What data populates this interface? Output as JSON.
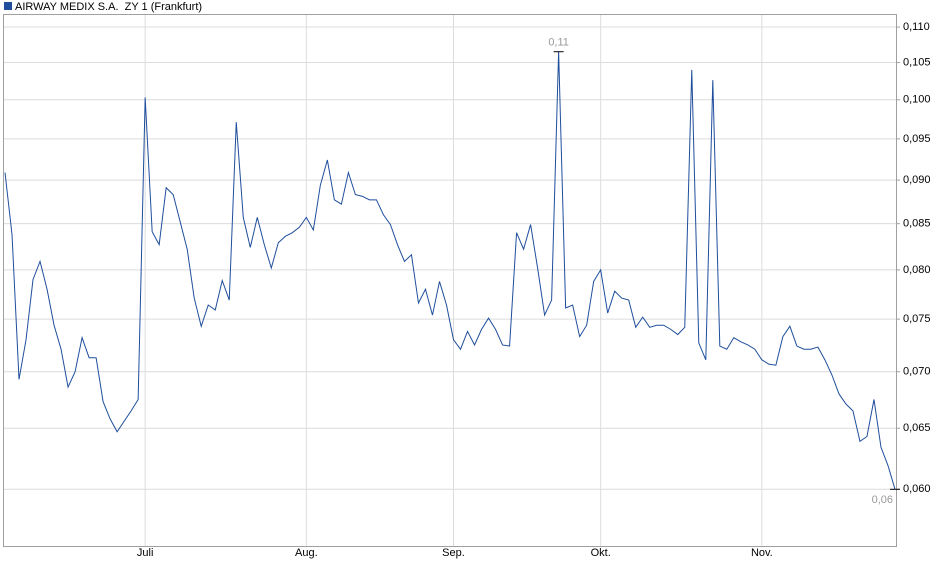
{
  "chart_data": {
    "type": "line",
    "log_scale": true,
    "grid": true,
    "legend": "top-left",
    "categories": [
      null,
      null,
      null,
      null,
      null,
      null,
      null,
      null,
      null,
      null,
      null,
      null,
      null,
      null,
      null,
      null,
      null,
      null,
      null,
      null,
      "Juli",
      null,
      null,
      null,
      null,
      null,
      null,
      null,
      null,
      null,
      null,
      null,
      null,
      null,
      null,
      null,
      null,
      null,
      null,
      null,
      null,
      null,
      null,
      "Aug.",
      null,
      null,
      null,
      null,
      null,
      null,
      null,
      null,
      null,
      null,
      null,
      null,
      null,
      null,
      null,
      null,
      null,
      null,
      null,
      null,
      "Sep.",
      null,
      null,
      null,
      null,
      null,
      null,
      null,
      null,
      null,
      null,
      null,
      null,
      null,
      null,
      null,
      null,
      null,
      null,
      null,
      null,
      "Okt.",
      null,
      null,
      null,
      null,
      null,
      null,
      null,
      null,
      null,
      null,
      null,
      null,
      null,
      null,
      null,
      null,
      null,
      null,
      null,
      null,
      null,
      null,
      "Nov.",
      null,
      null,
      null,
      null,
      null,
      null,
      null,
      null,
      null,
      null,
      null,
      null,
      null,
      null,
      null,
      null,
      null,
      null,
      null
    ],
    "series": [
      {
        "name": "AIRWAY MEDIX S.A.  ZY 1 (Frankfurt)",
        "color": "#1f4e9c",
        "values": [
          0.0909,
          0.0838,
          0.0693,
          0.073,
          0.079,
          0.0809,
          0.078,
          0.0744,
          0.0721,
          0.0686,
          0.07,
          0.0732,
          0.0713,
          0.0713,
          0.0673,
          0.0658,
          0.0647,
          0.0656,
          0.0665,
          0.0675,
          0.1003,
          0.0841,
          0.0827,
          0.0891,
          0.0883,
          0.0852,
          0.0822,
          0.0771,
          0.0743,
          0.0764,
          0.0759,
          0.0789,
          0.0769,
          0.0971,
          0.0857,
          0.0824,
          0.0857,
          0.0827,
          0.0802,
          0.0829,
          0.0836,
          0.084,
          0.0846,
          0.0857,
          0.0843,
          0.0894,
          0.0924,
          0.0877,
          0.0872,
          0.0909,
          0.0883,
          0.0881,
          0.0877,
          0.0877,
          0.086,
          0.0849,
          0.0827,
          0.0809,
          0.0816,
          0.0766,
          0.078,
          0.0754,
          0.0788,
          0.0764,
          0.073,
          0.0721,
          0.0738,
          0.0725,
          0.074,
          0.0751,
          0.074,
          0.0725,
          0.0724,
          0.084,
          0.0822,
          0.0849,
          0.0802,
          0.0754,
          0.0769,
          0.1065,
          0.0761,
          0.0764,
          0.0733,
          0.0744,
          0.0788,
          0.08,
          0.0756,
          0.0778,
          0.0771,
          0.0769,
          0.0742,
          0.0752,
          0.0742,
          0.0744,
          0.0744,
          0.074,
          0.0735,
          0.0742,
          0.104,
          0.0727,
          0.0711,
          0.1026,
          0.0724,
          0.0721,
          0.0732,
          0.0728,
          0.0725,
          0.0721,
          0.0711,
          0.0707,
          0.0706,
          0.0733,
          0.0743,
          0.0724,
          0.0721,
          0.0721,
          0.0723,
          0.0711,
          0.0697,
          0.068,
          0.0671,
          0.0665,
          0.0639,
          0.0643,
          0.0675,
          0.0634,
          0.0619,
          0.06
        ],
        "value_labels": [
          null,
          null,
          null,
          null,
          null,
          null,
          null,
          null,
          null,
          null,
          null,
          null,
          null,
          null,
          null,
          null,
          null,
          null,
          null,
          null,
          null,
          null,
          null,
          null,
          null,
          null,
          null,
          null,
          null,
          null,
          null,
          null,
          null,
          null,
          null,
          null,
          null,
          null,
          null,
          null,
          null,
          null,
          null,
          null,
          null,
          null,
          null,
          null,
          null,
          null,
          null,
          null,
          null,
          null,
          null,
          null,
          null,
          null,
          null,
          null,
          null,
          null,
          null,
          null,
          null,
          null,
          null,
          null,
          null,
          null,
          null,
          null,
          null,
          null,
          null,
          null,
          null,
          null,
          null,
          "0,11",
          null,
          null,
          null,
          null,
          null,
          null,
          null,
          null,
          null,
          null,
          null,
          null,
          null,
          null,
          null,
          null,
          null,
          null,
          null,
          null,
          null,
          null,
          null,
          null,
          null,
          null,
          null,
          null,
          null,
          null,
          null,
          null,
          null,
          null,
          null,
          null,
          null,
          null,
          null,
          null,
          null,
          null,
          null,
          null,
          null,
          null,
          null,
          "0,06"
        ]
      }
    ],
    "ylim": [
      0.0557,
      0.1119
    ],
    "yticks": [
      {
        "value": 0.06,
        "label": "0,060"
      },
      {
        "value": 0.065,
        "label": "0,065"
      },
      {
        "value": 0.07,
        "label": "0,070"
      },
      {
        "value": 0.075,
        "label": "0,075"
      },
      {
        "value": 0.08,
        "label": "0,080"
      },
      {
        "value": 0.085,
        "label": "0,085"
      },
      {
        "value": 0.09,
        "label": "0,090"
      },
      {
        "value": 0.095,
        "label": "0,095"
      },
      {
        "value": 0.1,
        "label": "0,100"
      },
      {
        "value": 0.105,
        "label": "0,105"
      },
      {
        "value": 0.11,
        "label": "0,110"
      }
    ]
  }
}
